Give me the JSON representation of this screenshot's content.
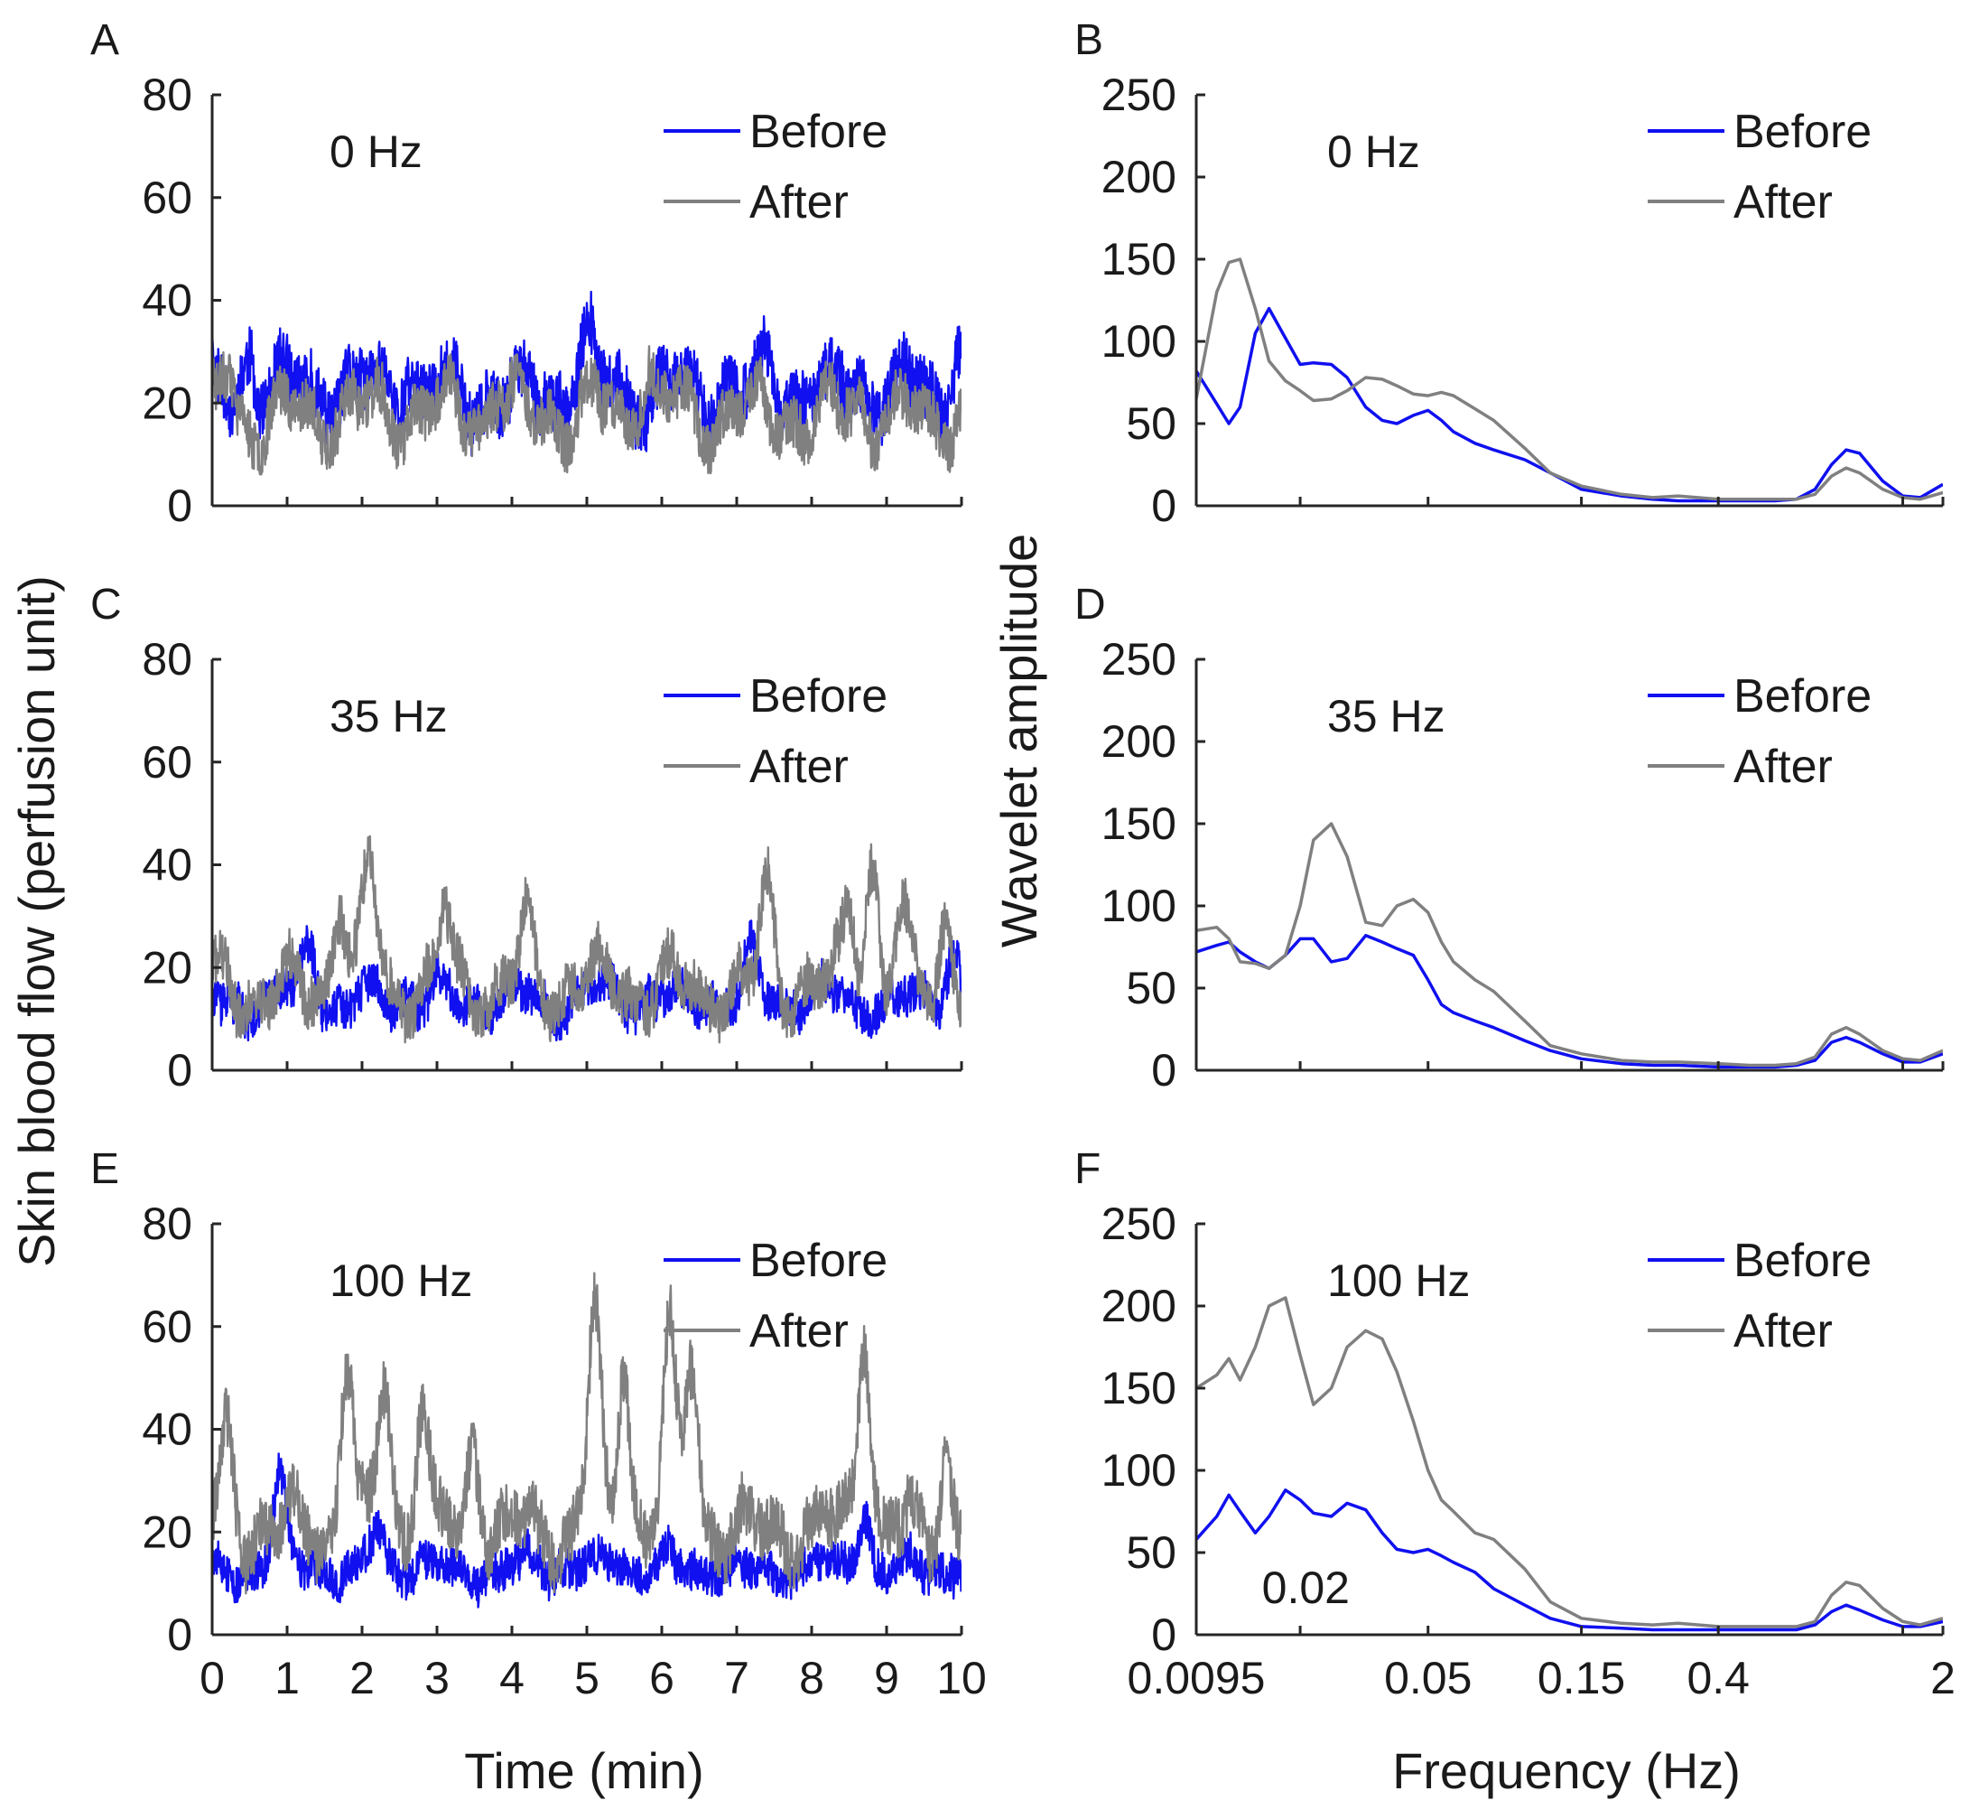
{
  "colors": {
    "before": "#1010f0",
    "after": "#808080",
    "axis": "#262626"
  },
  "axis_labels": {
    "time_ylabel": "Skin blood flow (perfusion unit)",
    "time_xlabel": "Time (min)",
    "freq_ylabel": "Wavelet amplitude",
    "freq_xlabel": "Frequency (Hz)"
  },
  "legend": {
    "before": "Before",
    "after": "After"
  },
  "chart_data": [
    {
      "id": "A",
      "type": "line",
      "title": "0 Hz",
      "panel_label": "A",
      "xlim": [
        0,
        10
      ],
      "ylim": [
        0,
        80
      ],
      "xticks": [
        "0",
        "1",
        "2",
        "3",
        "4",
        "5",
        "6",
        "7",
        "8",
        "9",
        "10"
      ],
      "yticks": [
        "0",
        "20",
        "40",
        "60",
        "80"
      ],
      "series": [
        {
          "name": "Before",
          "baseline": 22,
          "noise_amp": 6,
          "slow_amp": 6,
          "seed": 11,
          "peaks": [
            [
              0.5,
              8
            ],
            [
              2.6,
              5
            ],
            [
              5.0,
              10
            ],
            [
              7.4,
              6
            ],
            [
              8.6,
              4
            ],
            [
              9.95,
              12
            ]
          ]
        },
        {
          "name": "After",
          "baseline": 18,
          "noise_amp": 5,
          "slow_amp": 7,
          "seed": 23,
          "peaks": [
            [
              0.2,
              10
            ],
            [
              3.8,
              6
            ],
            [
              5.8,
              8
            ],
            [
              8.6,
              4
            ]
          ]
        }
      ]
    },
    {
      "id": "B",
      "type": "line",
      "title": "0 Hz",
      "panel_label": "B",
      "x_scale": "log",
      "xlim": [
        0.0095,
        2
      ],
      "ylim": [
        0,
        250
      ],
      "xticks": [],
      "yticks": [
        "0",
        "50",
        "100",
        "150",
        "200",
        "250"
      ],
      "series": [
        {
          "name": "Before",
          "x": [
            0.0095,
            0.011,
            0.012,
            0.013,
            0.0145,
            0.016,
            0.018,
            0.02,
            0.022,
            0.025,
            0.028,
            0.032,
            0.036,
            0.04,
            0.045,
            0.05,
            0.055,
            0.06,
            0.07,
            0.08,
            0.1,
            0.12,
            0.15,
            0.2,
            0.25,
            0.3,
            0.4,
            0.5,
            0.6,
            0.7,
            0.8,
            0.9,
            1.0,
            1.1,
            1.3,
            1.5,
            1.7,
            2.0
          ],
          "y": [
            82,
            62,
            50,
            60,
            105,
            120,
            102,
            86,
            87,
            86,
            78,
            60,
            52,
            50,
            55,
            58,
            52,
            45,
            38,
            34,
            28,
            20,
            10,
            6,
            4,
            3,
            3,
            3,
            3,
            4,
            10,
            25,
            34,
            32,
            15,
            6,
            5,
            13
          ]
        },
        {
          "name": "After",
          "x": [
            0.0095,
            0.011,
            0.012,
            0.013,
            0.0145,
            0.016,
            0.018,
            0.02,
            0.022,
            0.025,
            0.028,
            0.032,
            0.036,
            0.04,
            0.045,
            0.05,
            0.055,
            0.06,
            0.07,
            0.08,
            0.1,
            0.12,
            0.15,
            0.2,
            0.25,
            0.3,
            0.4,
            0.5,
            0.6,
            0.7,
            0.8,
            0.9,
            1.0,
            1.1,
            1.3,
            1.5,
            1.7,
            2.0
          ],
          "y": [
            65,
            130,
            148,
            150,
            120,
            88,
            76,
            70,
            64,
            65,
            70,
            78,
            77,
            73,
            68,
            67,
            69,
            67,
            59,
            52,
            35,
            20,
            12,
            7,
            5,
            6,
            4,
            4,
            4,
            4,
            7,
            18,
            23,
            20,
            10,
            5,
            4,
            8
          ]
        }
      ]
    },
    {
      "id": "C",
      "type": "line",
      "title": "35 Hz",
      "panel_label": "C",
      "xlim": [
        0,
        10
      ],
      "ylim": [
        0,
        80
      ],
      "xticks": [
        "0",
        "1",
        "2",
        "3",
        "4",
        "5",
        "6",
        "7",
        "8",
        "9",
        "10"
      ],
      "yticks": [
        "0",
        "20",
        "40",
        "60",
        "80"
      ],
      "series": [
        {
          "name": "Before",
          "baseline": 14,
          "noise_amp": 4,
          "slow_amp": 4,
          "seed": 37,
          "peaks": [
            [
              1.3,
              10
            ],
            [
              7.2,
              8
            ],
            [
              9.9,
              10
            ]
          ]
        },
        {
          "name": "After",
          "baseline": 16,
          "noise_amp": 5,
          "slow_amp": 7,
          "seed": 41,
          "peaks": [
            [
              1.7,
              18
            ],
            [
              2.1,
              22
            ],
            [
              3.1,
              14
            ],
            [
              4.2,
              12
            ],
            [
              7.4,
              18
            ],
            [
              8.5,
              14
            ],
            [
              8.8,
              24
            ],
            [
              9.2,
              12
            ],
            [
              9.8,
              16
            ]
          ]
        }
      ]
    },
    {
      "id": "D",
      "type": "line",
      "title": "35 Hz",
      "panel_label": "D",
      "x_scale": "log",
      "xlim": [
        0.0095,
        2
      ],
      "ylim": [
        0,
        250
      ],
      "xticks": [],
      "yticks": [
        "0",
        "50",
        "100",
        "150",
        "200",
        "250"
      ],
      "series": [
        {
          "name": "Before",
          "x": [
            0.0095,
            0.011,
            0.012,
            0.013,
            0.0145,
            0.016,
            0.018,
            0.02,
            0.022,
            0.025,
            0.028,
            0.032,
            0.036,
            0.04,
            0.045,
            0.05,
            0.055,
            0.06,
            0.07,
            0.08,
            0.1,
            0.12,
            0.15,
            0.2,
            0.25,
            0.3,
            0.4,
            0.5,
            0.6,
            0.7,
            0.8,
            0.9,
            1.0,
            1.1,
            1.3,
            1.5,
            1.7,
            2.0
          ],
          "y": [
            72,
            76,
            78,
            72,
            66,
            62,
            70,
            80,
            80,
            66,
            68,
            82,
            78,
            74,
            70,
            55,
            40,
            35,
            30,
            26,
            18,
            12,
            7,
            4,
            3,
            3,
            2,
            2,
            2,
            3,
            6,
            17,
            20,
            17,
            10,
            5,
            5,
            10
          ]
        },
        {
          "name": "After",
          "x": [
            0.0095,
            0.011,
            0.012,
            0.013,
            0.0145,
            0.016,
            0.018,
            0.02,
            0.022,
            0.025,
            0.028,
            0.032,
            0.036,
            0.04,
            0.045,
            0.05,
            0.055,
            0.06,
            0.07,
            0.08,
            0.1,
            0.12,
            0.15,
            0.2,
            0.25,
            0.3,
            0.4,
            0.5,
            0.6,
            0.7,
            0.8,
            0.9,
            1.0,
            1.1,
            1.3,
            1.5,
            1.7,
            2.0
          ],
          "y": [
            85,
            87,
            80,
            66,
            65,
            62,
            70,
            100,
            140,
            150,
            130,
            90,
            88,
            100,
            104,
            96,
            78,
            66,
            55,
            48,
            30,
            15,
            10,
            6,
            5,
            5,
            4,
            3,
            3,
            4,
            8,
            22,
            26,
            22,
            12,
            7,
            6,
            12
          ]
        }
      ]
    },
    {
      "id": "E",
      "type": "line",
      "title": "100 Hz",
      "panel_label": "E",
      "xlim": [
        0,
        10
      ],
      "ylim": [
        0,
        80
      ],
      "xticks": [
        "0",
        "1",
        "2",
        "3",
        "4",
        "5",
        "6",
        "7",
        "8",
        "9",
        "10"
      ],
      "yticks": [
        "0",
        "20",
        "40",
        "60",
        "80"
      ],
      "xlabel_key": "time_xlabel",
      "series": [
        {
          "name": "Before",
          "baseline": 13,
          "noise_amp": 4,
          "slow_amp": 3,
          "seed": 53,
          "peaks": [
            [
              0.9,
              16
            ],
            [
              2.2,
              8
            ],
            [
              8.7,
              12
            ]
          ]
        },
        {
          "name": "After",
          "baseline": 20,
          "noise_amp": 6,
          "slow_amp": 7,
          "seed": 61,
          "peaks": [
            [
              0.2,
              18
            ],
            [
              1.8,
              35
            ],
            [
              2.3,
              30
            ],
            [
              2.8,
              25
            ],
            [
              3.5,
              18
            ],
            [
              5.1,
              42
            ],
            [
              5.5,
              35
            ],
            [
              6.1,
              38
            ],
            [
              6.4,
              36
            ],
            [
              8.7,
              42
            ],
            [
              9.8,
              14
            ]
          ]
        }
      ]
    },
    {
      "id": "F",
      "type": "line",
      "title": "100 Hz",
      "panel_label": "F",
      "x_scale": "log",
      "xlim": [
        0.0095,
        2
      ],
      "ylim": [
        0,
        250
      ],
      "xticks": [
        "0.0095",
        "0.05",
        "0.15",
        "0.4",
        "2"
      ],
      "xtick_values": [
        0.0095,
        0.05,
        0.15,
        0.4,
        2
      ],
      "yticks": [
        "0",
        "50",
        "100",
        "150",
        "200",
        "250"
      ],
      "annotation": "0.02",
      "xlabel_key": "freq_xlabel",
      "series": [
        {
          "name": "Before",
          "x": [
            0.0095,
            0.011,
            0.012,
            0.013,
            0.0145,
            0.016,
            0.018,
            0.02,
            0.022,
            0.025,
            0.028,
            0.032,
            0.036,
            0.04,
            0.045,
            0.05,
            0.055,
            0.06,
            0.07,
            0.08,
            0.1,
            0.12,
            0.15,
            0.2,
            0.25,
            0.3,
            0.4,
            0.5,
            0.6,
            0.7,
            0.8,
            0.9,
            1.0,
            1.1,
            1.3,
            1.5,
            1.7,
            2.0
          ],
          "y": [
            58,
            72,
            85,
            75,
            62,
            72,
            88,
            82,
            74,
            72,
            80,
            76,
            62,
            52,
            50,
            52,
            48,
            44,
            38,
            28,
            18,
            10,
            5,
            4,
            3,
            3,
            3,
            3,
            3,
            3,
            6,
            14,
            18,
            15,
            9,
            5,
            5,
            8
          ]
        },
        {
          "name": "After",
          "x": [
            0.0095,
            0.011,
            0.012,
            0.013,
            0.0145,
            0.016,
            0.018,
            0.02,
            0.022,
            0.025,
            0.028,
            0.032,
            0.036,
            0.04,
            0.045,
            0.05,
            0.055,
            0.06,
            0.07,
            0.08,
            0.1,
            0.12,
            0.15,
            0.2,
            0.25,
            0.3,
            0.4,
            0.5,
            0.6,
            0.7,
            0.8,
            0.9,
            1.0,
            1.1,
            1.3,
            1.5,
            1.7,
            2.0
          ],
          "y": [
            150,
            158,
            168,
            155,
            175,
            200,
            205,
            170,
            140,
            150,
            175,
            185,
            180,
            160,
            130,
            100,
            82,
            75,
            62,
            58,
            40,
            20,
            10,
            7,
            6,
            7,
            5,
            5,
            5,
            5,
            8,
            24,
            32,
            30,
            16,
            8,
            6,
            10
          ]
        }
      ]
    }
  ]
}
